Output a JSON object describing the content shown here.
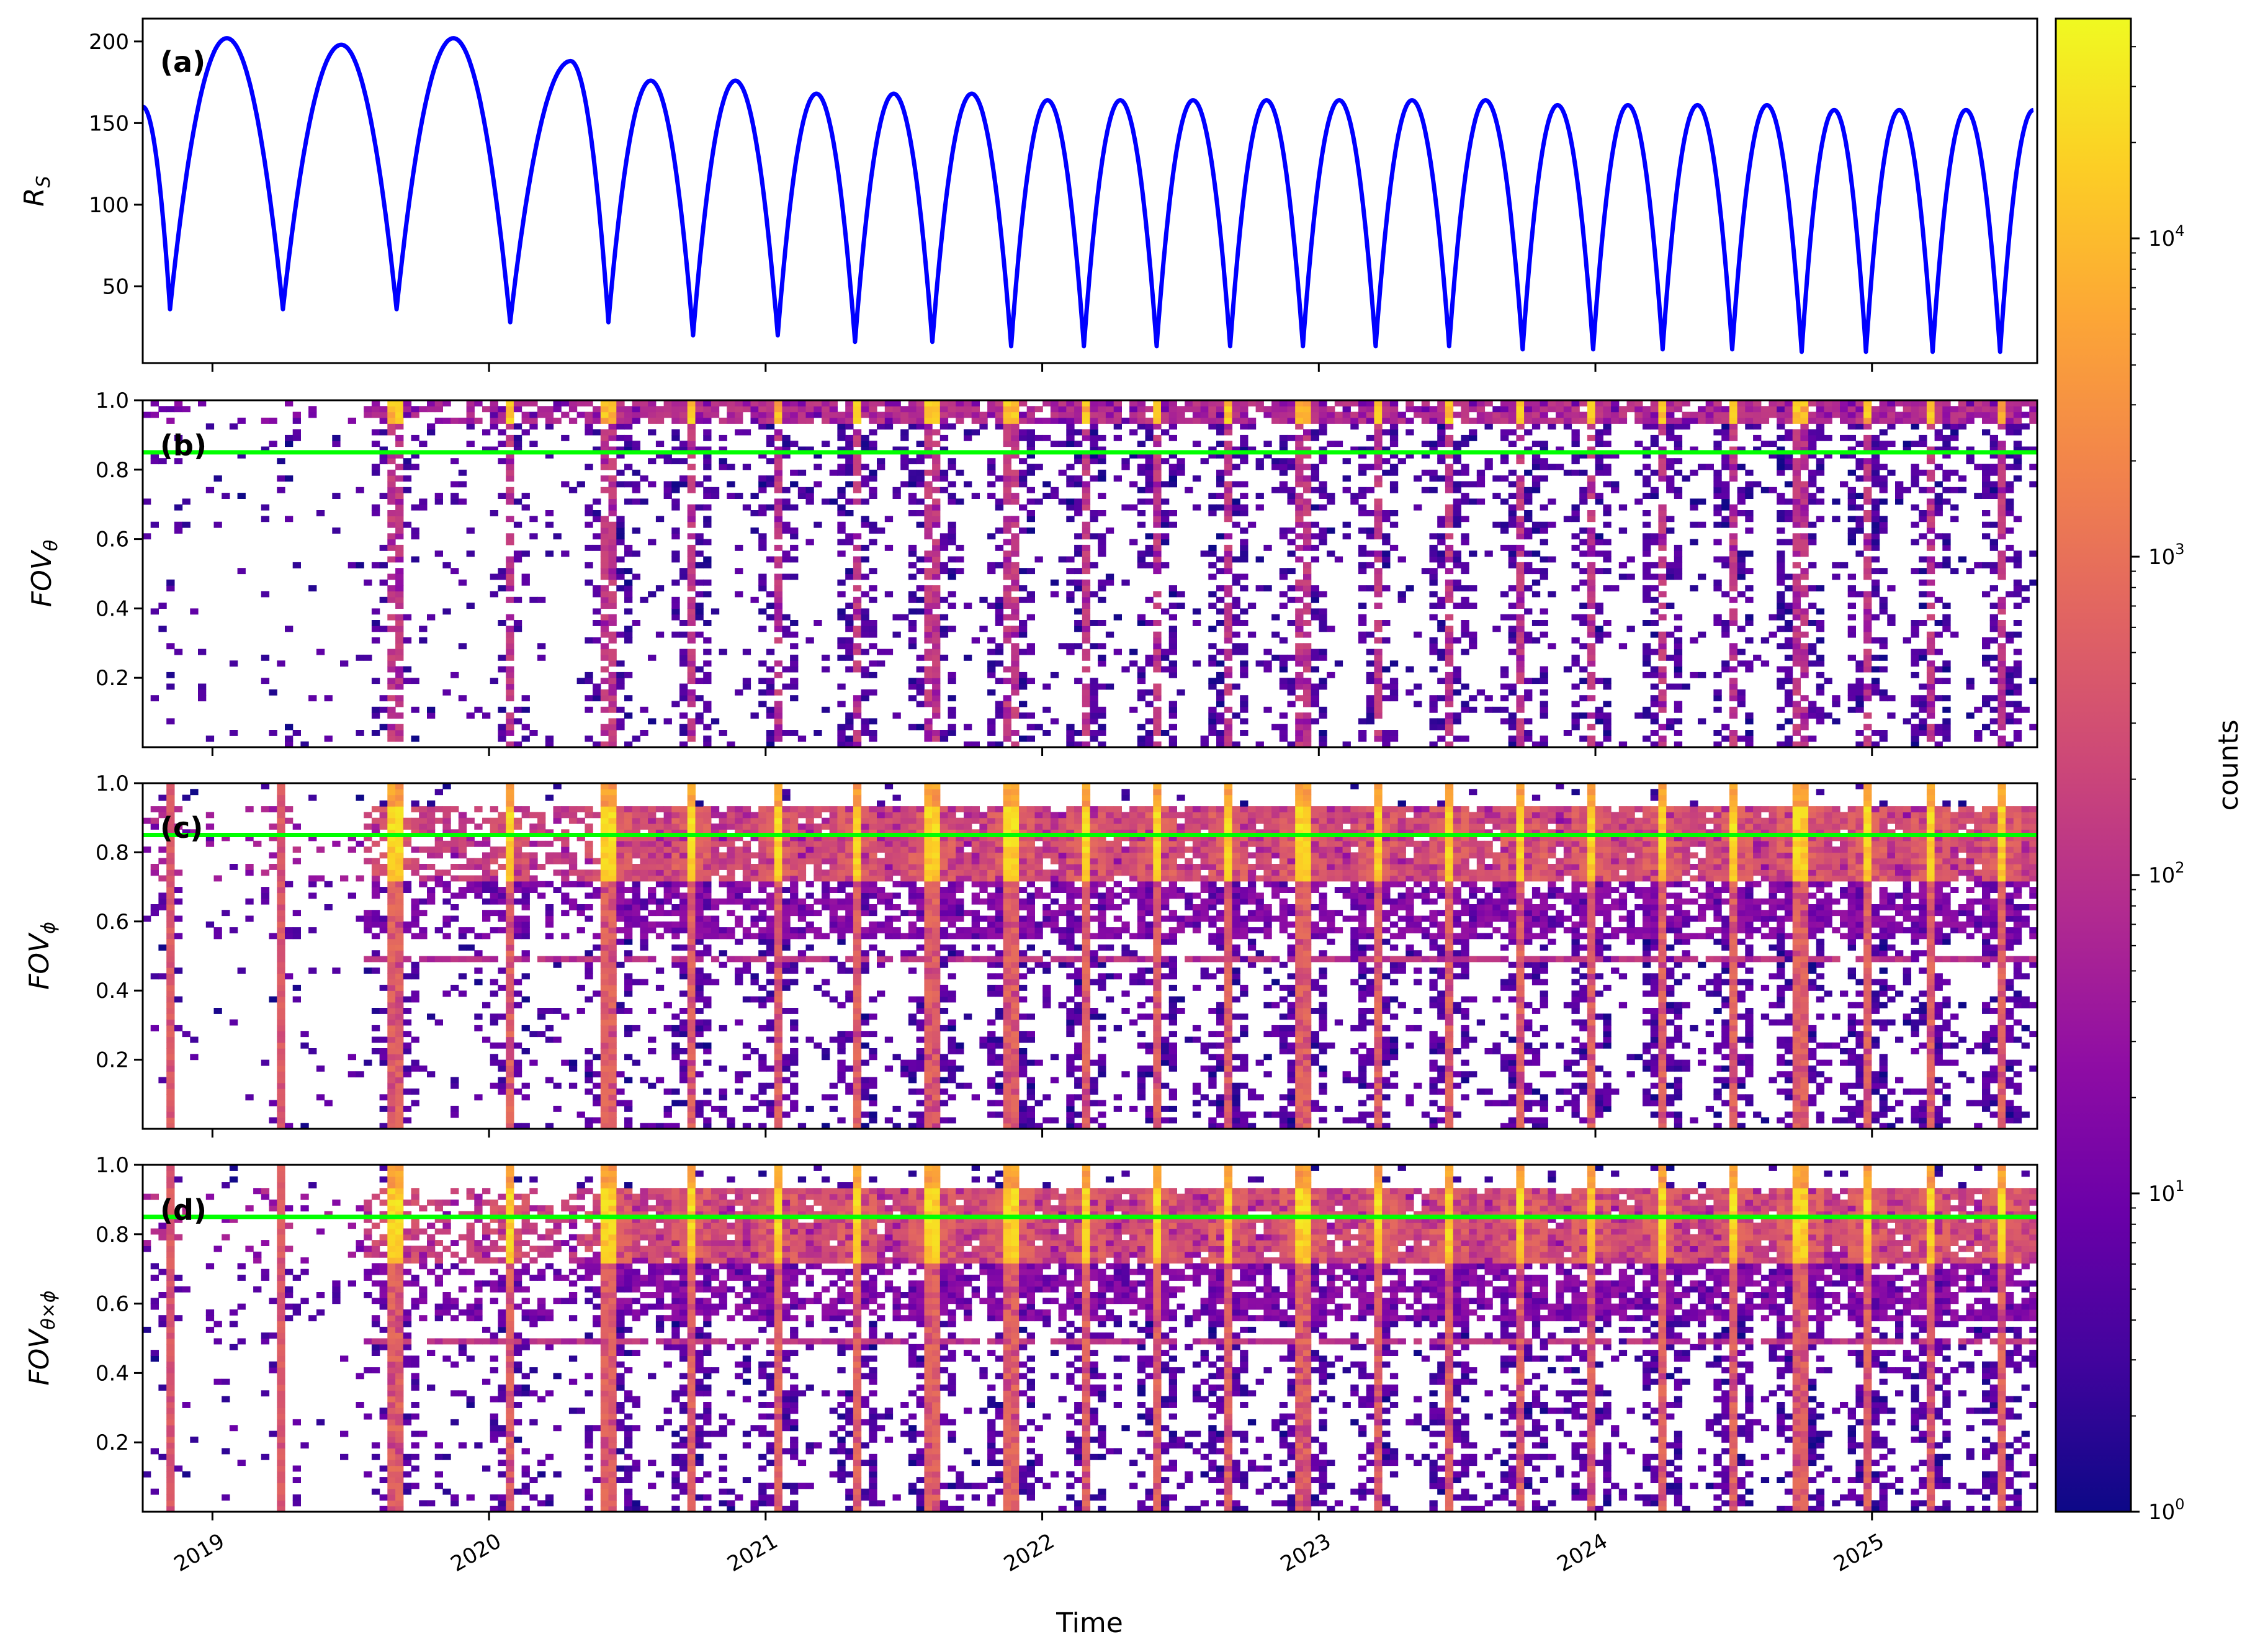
{
  "x_axis": {
    "label": "Time",
    "range": [
      "2018-10-01",
      "2025-08-07"
    ],
    "tick_labels": [
      "2019",
      "2020",
      "2021",
      "2022",
      "2023",
      "2024",
      "2025"
    ]
  },
  "colors": {
    "rs_line": "#0000ff",
    "reference_line": "#00ff00",
    "colormap": "plasma"
  },
  "chart_data": [
    {
      "id": "a",
      "type": "line",
      "panel_label": "(a)",
      "ylabel": {
        "main": "R",
        "sub": "S"
      },
      "ylim": [
        3,
        214
      ],
      "yticks": [
        "50",
        "100",
        "150",
        "200"
      ],
      "series": [
        {
          "extrema": [
            [
              "2018-10-01",
              160
            ],
            [
              "2018-11-06",
              36
            ],
            [
              "2019-01-20",
              202
            ],
            [
              "2019-04-04",
              36
            ],
            [
              "2019-06-20",
              198
            ],
            [
              "2019-09-01",
              36
            ],
            [
              "2019-11-15",
              202
            ],
            [
              "2020-01-29",
              28
            ],
            [
              "2020-04-18",
              188
            ],
            [
              "2020-06-07",
              28
            ],
            [
              "2020-08-02",
              176
            ],
            [
              "2020-09-27",
              20
            ],
            [
              "2020-11-22",
              176
            ],
            [
              "2021-01-17",
              20
            ],
            [
              "2021-03-09",
              168
            ],
            [
              "2021-04-29",
              16
            ],
            [
              "2021-06-19",
              168
            ],
            [
              "2021-08-09",
              16
            ],
            [
              "2021-09-30",
              168
            ],
            [
              "2021-11-21",
              13.3
            ],
            [
              "2022-01-08",
              164
            ],
            [
              "2022-02-25",
              13.3
            ],
            [
              "2022-04-14",
              164
            ],
            [
              "2022-06-01",
              13.3
            ],
            [
              "2022-07-19",
              164
            ],
            [
              "2022-09-06",
              13.3
            ],
            [
              "2022-10-24",
              164
            ],
            [
              "2022-12-11",
              13.3
            ],
            [
              "2023-01-28",
              164
            ],
            [
              "2023-03-17",
              13.3
            ],
            [
              "2023-05-04",
              164
            ],
            [
              "2023-06-22",
              13.3
            ],
            [
              "2023-08-09",
              164
            ],
            [
              "2023-09-27",
              11.4
            ],
            [
              "2023-11-12",
              161
            ],
            [
              "2023-12-29",
              11.4
            ],
            [
              "2024-02-13",
              161
            ],
            [
              "2024-03-30",
              11.4
            ],
            [
              "2024-05-15",
              161
            ],
            [
              "2024-06-30",
              11.4
            ],
            [
              "2024-08-15",
              161
            ],
            [
              "2024-09-30",
              9.9
            ],
            [
              "2024-11-12",
              158
            ],
            [
              "2024-12-24",
              9.9
            ],
            [
              "2025-02-06",
              158
            ],
            [
              "2025-03-22",
              9.9
            ],
            [
              "2025-05-05",
              158
            ],
            [
              "2025-06-19",
              9.9
            ],
            [
              "2025-08-02",
              158
            ]
          ]
        }
      ]
    },
    {
      "id": "b",
      "type": "heatmap",
      "panel_label": "(b)",
      "ylabel": {
        "main": "FOV",
        "sub": "θ"
      },
      "ylim": [
        0,
        1
      ],
      "yticks": [
        "0.2",
        "0.4",
        "0.6",
        "0.8",
        "1.0"
      ],
      "reference_line_y": 0.85
    },
    {
      "id": "c",
      "type": "heatmap",
      "panel_label": "(c)",
      "ylabel": {
        "main": "FOV",
        "sub": "ϕ"
      },
      "ylim": [
        0,
        1
      ],
      "yticks": [
        "0.2",
        "0.4",
        "0.6",
        "0.8",
        "1.0"
      ],
      "reference_line_y": 0.85
    },
    {
      "id": "d",
      "type": "heatmap",
      "panel_label": "(d)",
      "ylabel": {
        "main": "FOV",
        "sub": "θ×ϕ"
      },
      "ylim": [
        0,
        1
      ],
      "yticks": [
        "0.2",
        "0.4",
        "0.6",
        "0.8",
        "1.0"
      ],
      "reference_line_y": 0.85
    }
  ],
  "heatmap_features": {
    "high_count_columns_at": [
      "2018-11-06",
      "2019-04-04",
      "2019-09-01",
      "2020-01-29",
      "2020-06-07",
      "2020-09-27",
      "2021-01-17",
      "2021-04-29",
      "2021-08-09",
      "2021-11-21",
      "2022-02-25",
      "2022-06-01",
      "2022-09-06",
      "2022-12-11",
      "2023-03-17",
      "2023-06-22",
      "2023-09-27",
      "2023-12-29",
      "2024-03-30",
      "2024-06-30",
      "2024-09-30",
      "2024-12-24",
      "2025-03-22",
      "2025-06-19"
    ]
  },
  "colorbar": {
    "label": "counts",
    "scale": "log",
    "range": [
      1,
      49000
    ],
    "tick_labels": [
      {
        "base": "10",
        "exp": "0"
      },
      {
        "base": "10",
        "exp": "1"
      },
      {
        "base": "10",
        "exp": "2"
      },
      {
        "base": "10",
        "exp": "3"
      },
      {
        "base": "10",
        "exp": "4"
      }
    ]
  }
}
